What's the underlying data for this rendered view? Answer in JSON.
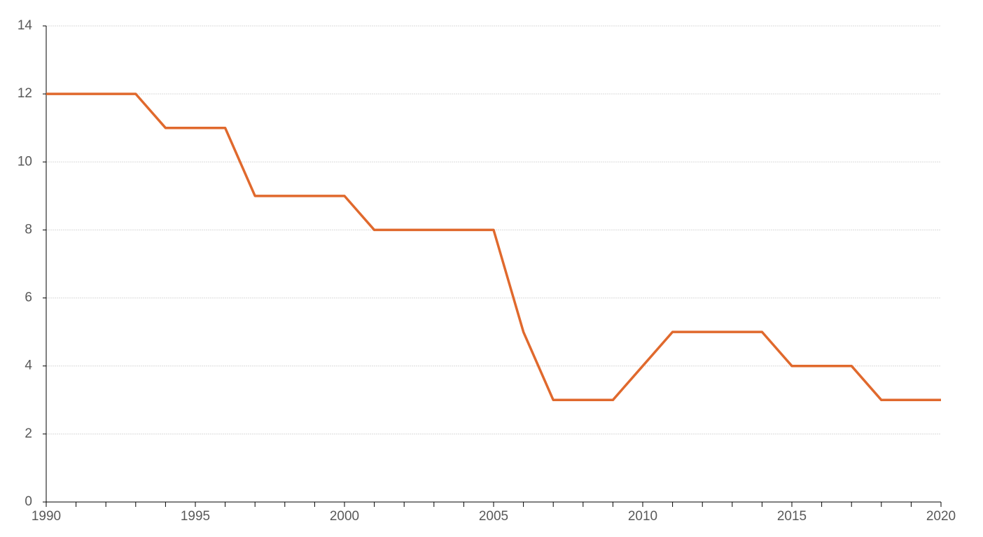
{
  "chart_data": {
    "type": "line",
    "x": [
      1990,
      1991,
      1992,
      1993,
      1994,
      1995,
      1996,
      1997,
      1998,
      1999,
      2000,
      2001,
      2002,
      2003,
      2004,
      2005,
      2006,
      2007,
      2008,
      2009,
      2010,
      2011,
      2012,
      2013,
      2014,
      2015,
      2016,
      2017,
      2018,
      2019,
      2020
    ],
    "values": [
      12,
      12,
      12,
      12,
      11,
      11,
      11,
      9,
      9,
      9,
      9,
      8,
      8,
      8,
      8,
      8,
      5,
      3,
      3,
      3,
      4,
      5,
      5,
      5,
      5,
      4,
      4,
      4,
      3,
      3,
      3
    ],
    "color": "#e0692d",
    "xlim": [
      1990,
      2020
    ],
    "xticks": [
      1990,
      1995,
      2000,
      2005,
      2010,
      2015,
      2020
    ],
    "ylim": [
      0,
      14
    ],
    "yticks": [
      0,
      2,
      4,
      6,
      8,
      10,
      12,
      14
    ],
    "grid": true
  }
}
